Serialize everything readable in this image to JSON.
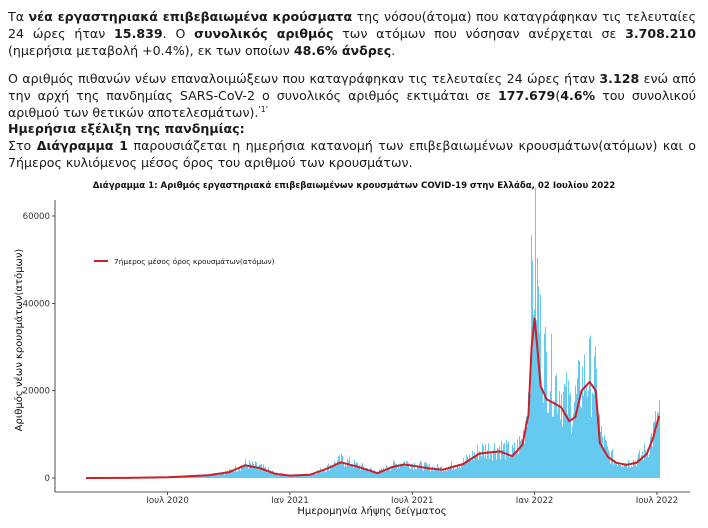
{
  "paragraph1": {
    "t1": "Τα ",
    "b1": "νέα εργαστηριακά επιβεβαιωμένα κρούσματα",
    "t2": " της νόσου(άτομα) που καταγράφηκαν τις τελευταίες 24 ώρες ήταν ",
    "b2": "15.839",
    "t3": ".  Ο ",
    "b3": "συνολικός αριθμός",
    "t4": " των ατόμων που νόσησαν ανέρχεται σε ",
    "b4": "3.708.210",
    "t5": " (ημερήσια μεταβολή +0.4%), εκ των οποίων ",
    "b5": "48.6% άνδρες",
    "t6": "."
  },
  "paragraph2": {
    "t1": "Ο αριθμός πιθανών νέων επαναλοιμώξεων που καταγράφηκαν τις τελευταίες 24 ώρες ήταν ",
    "b1": "3.128",
    "t2": " ενώ από την αρχή της πανδημίας SARS-CoV-2 ο συνολικός αριθμός εκτιμάται σε ",
    "b2": "177.679",
    "t3": "(",
    "b3": "4.6%",
    "t4": " του συνολικού αριθμού των θετικών αποτελεσμάτων).",
    "sup": "'1'"
  },
  "paragraph3": {
    "heading": "Ημερήσια εξέλιξη της πανδημίας:",
    "t1": "Στο ",
    "b1": "Διάγραμμα 1",
    "t2": " παρουσιάζεται η ημερήσια κατανομή των επιβεβαιωμένων κρουσμάτων(ατόμων) και ο 7ήμερος κυλιόμενος μέσος όρος του αριθμού των κρουσμάτων."
  },
  "chart_data": {
    "type": "bar",
    "title": "Διάγραμμα 1: Αριθμός εργαστηριακά επιβεβαιωμένων κρουσμάτων COVID-19 στην Ελλάδα, 02 Ιουλίου 2022",
    "xlabel": "Ημερομηνία λήψης δείγματος",
    "ylabel": "Αριθμός νέων κρουσμάτων(ατόμων)",
    "ylim": [
      0,
      65000
    ],
    "y_ticks": [
      0,
      20000,
      40000,
      60000
    ],
    "y_tick_labels": [
      "0",
      "20000",
      "40000",
      "60000"
    ],
    "x_range_months": [
      0,
      28.1
    ],
    "x_ticks_months": [
      4,
      10,
      16,
      22,
      28
    ],
    "x_tick_labels": [
      "Ιουλ 2020",
      "Ιαν 2021",
      "Ιουλ 2021",
      "Ιαν 2022",
      "Ιουλ 2022"
    ],
    "legend_label": "7ήμερος μέσος όρος κρουσμάτων(ατόμων)",
    "colors": {
      "bars": "#56c5ef",
      "line": "#cc1f2a"
    },
    "series": [
      {
        "name": "Ημερήσια κρούσματα",
        "kind": "bar",
        "months": [
          0,
          2,
          4,
          6,
          7,
          7.8,
          8.5,
          9.3,
          10,
          11,
          11.8,
          12.5,
          13.3,
          14.3,
          15,
          15.6,
          16.2,
          16.8,
          17.5,
          18.5,
          19.3,
          20.3,
          20.9,
          21.4,
          21.7,
          21.85,
          22,
          22.15,
          22.3,
          22.6,
          23,
          23.3,
          23.7,
          24,
          24.3,
          24.7,
          25,
          25.2,
          25.6,
          26,
          26.5,
          27,
          27.5,
          27.8,
          28.1
        ],
        "values": [
          0,
          40,
          180,
          800,
          1600,
          3500,
          2800,
          1100,
          700,
          900,
          2600,
          4500,
          3100,
          1400,
          3100,
          3900,
          3300,
          2700,
          2400,
          3900,
          6800,
          7600,
          6200,
          9500,
          22000,
          48000,
          54000,
          44000,
          33000,
          27000,
          24000,
          21000,
          18000,
          19000,
          24000,
          26000,
          23000,
          11000,
          6000,
          4200,
          3800,
          4400,
          7200,
          11000,
          16000
        ]
      },
      {
        "name": "7ήμερος μέσος όρος κρουσμάτων(ατόμων)",
        "kind": "line",
        "months": [
          0,
          2,
          4,
          6,
          7,
          7.8,
          8.5,
          9.3,
          10,
          11,
          11.8,
          12.5,
          13.3,
          14.3,
          15,
          15.6,
          16.2,
          16.8,
          17.5,
          18.5,
          19.3,
          20.3,
          20.9,
          21.4,
          21.7,
          21.85,
          22,
          22.15,
          22.3,
          22.6,
          23,
          23.3,
          23.7,
          24,
          24.3,
          24.7,
          25,
          25.2,
          25.6,
          26,
          26.5,
          27,
          27.5,
          27.8,
          28.1
        ],
        "values": [
          0,
          30,
          150,
          650,
          1300,
          2900,
          2300,
          950,
          550,
          750,
          2100,
          3600,
          2600,
          1100,
          2500,
          3100,
          2700,
          2200,
          1900,
          3200,
          5600,
          6100,
          5000,
          7600,
          14500,
          30000,
          36500,
          29000,
          21000,
          18000,
          17000,
          16200,
          13000,
          14000,
          20000,
          22000,
          20000,
          8000,
          4800,
          3500,
          3000,
          3500,
          5500,
          9000,
          14200
        ]
      }
    ]
  }
}
